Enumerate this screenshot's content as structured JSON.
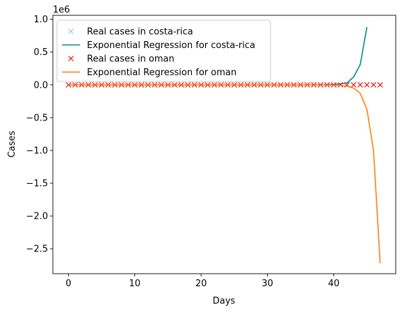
{
  "chart_data": {
    "type": "line",
    "title": "",
    "xlabel": "Days",
    "ylabel": "Cases",
    "y_offset_label": "1e6",
    "xlim": [
      -2.35,
      49.35
    ],
    "ylim": [
      -2.88,
      1.06
    ],
    "x_ticks": [
      0,
      10,
      20,
      30,
      40
    ],
    "x_tick_labels": [
      "0",
      "10",
      "20",
      "30",
      "40"
    ],
    "y_ticks": [
      1.0,
      0.5,
      0.0,
      -0.5,
      -1.0,
      -1.5,
      -2.0,
      -2.5
    ],
    "y_tick_labels": [
      "1.0",
      "0.5",
      "0.0",
      "−0.5",
      "−1.0",
      "−1.5",
      "−2.0",
      "−2.5"
    ],
    "grid": false,
    "legend_position": "top-left",
    "colors": {
      "real_costa_rica": "#87ceeb",
      "fit_costa_rica": "#008b8b",
      "real_oman": "#ff0000",
      "fit_oman": "#ff7f0e"
    },
    "series": [
      {
        "name": "Real cases in costa-rica",
        "style": "x-marker",
        "color": "#87ceeb",
        "x": [
          0,
          1,
          2,
          3,
          4,
          5,
          6,
          7,
          8,
          9,
          10,
          11,
          12,
          13,
          14,
          15,
          16,
          17,
          18,
          19,
          20,
          21,
          22,
          23,
          24,
          25,
          26,
          27,
          28,
          29,
          30,
          31,
          32,
          33,
          34,
          35,
          36,
          37,
          38,
          39,
          40,
          41,
          42,
          43,
          44,
          45,
          46,
          47
        ],
        "y": [
          0,
          0,
          0,
          0,
          0,
          0,
          0,
          0,
          0,
          0,
          0,
          0,
          0,
          0,
          0,
          0,
          0,
          0,
          0,
          0,
          0,
          0,
          0,
          0,
          0,
          0,
          0,
          0,
          0,
          0,
          0,
          0,
          0,
          0,
          0,
          0,
          0,
          0,
          0,
          0,
          0,
          0,
          0,
          0,
          0,
          0,
          0,
          0
        ]
      },
      {
        "name": "Exponential Regression for costa-rica",
        "style": "line",
        "color": "#008b8b",
        "x": [
          0,
          5,
          10,
          15,
          20,
          25,
          30,
          35,
          38,
          39,
          40,
          41,
          42,
          43,
          44,
          45
        ],
        "y": [
          0,
          0,
          0,
          0,
          0,
          0,
          0,
          0.0005,
          0.002,
          0.003,
          0.006,
          0.013,
          0.03,
          0.12,
          0.31,
          0.88
        ]
      },
      {
        "name": "Real cases in oman",
        "style": "x-marker",
        "color": "#ff0000",
        "x": [
          0,
          1,
          2,
          3,
          4,
          5,
          6,
          7,
          8,
          9,
          10,
          11,
          12,
          13,
          14,
          15,
          16,
          17,
          18,
          19,
          20,
          21,
          22,
          23,
          24,
          25,
          26,
          27,
          28,
          29,
          30,
          31,
          32,
          33,
          34,
          35,
          36,
          37,
          38,
          39,
          40,
          41,
          42,
          43,
          44,
          45,
          46,
          47
        ],
        "y": [
          0,
          0,
          0,
          0,
          0,
          0,
          0,
          0,
          0,
          0,
          0,
          0,
          0,
          0,
          0,
          0,
          0,
          0,
          0,
          0,
          0,
          0,
          0,
          0,
          0,
          0,
          0,
          0,
          0,
          0,
          0,
          0,
          0,
          0,
          0,
          0,
          0,
          0,
          0,
          0,
          0,
          0,
          0,
          0,
          0,
          0,
          0,
          0
        ]
      },
      {
        "name": "Exponential Regression for oman",
        "style": "line",
        "color": "#ff7f0e",
        "x": [
          0,
          5,
          10,
          15,
          20,
          25,
          30,
          35,
          38,
          39,
          40,
          41,
          42,
          43,
          44,
          45,
          46,
          47
        ],
        "y": [
          0,
          0,
          0,
          0,
          0,
          0,
          0,
          -0.0005,
          -0.002,
          -0.003,
          -0.005,
          -0.01,
          -0.02,
          -0.05,
          -0.13,
          -0.37,
          -1.0,
          -2.72
        ]
      }
    ]
  }
}
